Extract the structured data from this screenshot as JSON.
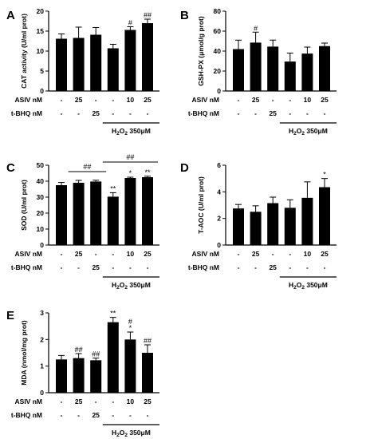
{
  "chart_data": [
    {
      "panel": "A",
      "type": "bar",
      "ylabel": "CAT activity (U/ml prot)",
      "ylim": [
        0,
        20
      ],
      "yticks": [
        "0",
        "5",
        "10",
        "15",
        "20"
      ],
      "values": [
        13.1,
        13.3,
        14.1,
        10.7,
        15.3,
        17.0
      ],
      "errors": [
        1.2,
        2.7,
        1.8,
        1.0,
        0.8,
        1.0
      ],
      "marks": [
        "",
        "",
        "",
        "",
        "#",
        "##"
      ],
      "grid": false,
      "rows": [
        {
          "label": "ASIV nM",
          "cells": [
            "-",
            "25",
            "-",
            "-",
            "10",
            "25"
          ]
        },
        {
          "label": "t-BHQ nM",
          "cells": [
            "-",
            "-",
            "25",
            "-",
            "-",
            "-"
          ]
        }
      ],
      "h2o2": {
        "prefix": "H",
        "sub1": "2",
        "mid": "O",
        "sub2": "2",
        "suffix": "  350μM"
      }
    },
    {
      "panel": "B",
      "type": "bar",
      "ylabel": "GSH-PX (μmol/g prot)",
      "ylim": [
        0,
        80
      ],
      "yticks": [
        "0",
        "20",
        "40",
        "60",
        "80"
      ],
      "values": [
        42,
        48.5,
        44.5,
        29.5,
        37.5,
        45
      ],
      "errors": [
        9,
        10.5,
        6.5,
        8.5,
        6.5,
        3
      ],
      "marks": [
        "",
        "#",
        "",
        "",
        "",
        ""
      ],
      "grid": false,
      "rows": [
        {
          "label": "ASIV nM",
          "cells": [
            "-",
            "25",
            "-",
            "-",
            "10",
            "25"
          ]
        },
        {
          "label": "t-BHQ nM",
          "cells": [
            "-",
            "-",
            "25",
            "-",
            "-",
            "-"
          ]
        }
      ],
      "h2o2": {
        "prefix": "H",
        "sub1": "2",
        "mid": "O",
        "sub2": "2",
        "suffix": "  350μM"
      }
    },
    {
      "panel": "C",
      "type": "bar",
      "ylabel": "SOD (U/ml prot)",
      "ylim": [
        0,
        50
      ],
      "yticks": [
        "0",
        "10",
        "20",
        "30",
        "40",
        "50"
      ],
      "values": [
        37.5,
        39,
        39.8,
        30.3,
        42,
        42.5
      ],
      "errors": [
        1.7,
        1.5,
        0.8,
        2.5,
        0.5,
        0.6
      ],
      "marks": [
        "",
        "",
        "",
        "**",
        "*",
        "**"
      ],
      "brackets": [
        {
          "from": 1,
          "to": 2,
          "y": 46,
          "label": "##"
        },
        {
          "from": 3,
          "to": 5,
          "y": 52,
          "label": "##"
        }
      ],
      "grid": false,
      "rows": [
        {
          "label": "ASIV nM",
          "cells": [
            "-",
            "25",
            "-",
            "-",
            "10",
            "25"
          ]
        },
        {
          "label": "t-BHQ nM",
          "cells": [
            "-",
            "-",
            "25",
            "-",
            "-",
            "-"
          ]
        }
      ],
      "h2o2": {
        "prefix": "H",
        "sub1": "2",
        "mid": "O",
        "sub2": "2",
        "suffix": "  350μM"
      }
    },
    {
      "panel": "D",
      "type": "bar",
      "ylabel": "T-AOC (U/ml prot)",
      "ylim": [
        0,
        6
      ],
      "yticks": [
        "0",
        "2",
        "4",
        "6"
      ],
      "values": [
        2.75,
        2.5,
        3.15,
        2.8,
        3.55,
        4.35
      ],
      "errors": [
        0.3,
        0.45,
        0.45,
        0.6,
        1.2,
        0.65
      ],
      "marks": [
        "",
        "",
        "",
        "",
        "",
        "*"
      ],
      "grid": false,
      "rows": [
        {
          "label": "ASIV nM",
          "cells": [
            "-",
            "25",
            "-",
            "-",
            "10",
            "25"
          ]
        },
        {
          "label": "t-BHQ nM",
          "cells": [
            "-",
            "-",
            "25",
            "-",
            "-",
            "-"
          ]
        }
      ],
      "h2o2": {
        "prefix": "H",
        "sub1": "2",
        "mid": "O",
        "sub2": "2",
        "suffix": "  350μM"
      }
    },
    {
      "panel": "E",
      "type": "bar",
      "ylabel": "MDA (nmol/mg prot)",
      "ylim": [
        0,
        3
      ],
      "yticks": [
        "0",
        "1",
        "2",
        "3"
      ],
      "values": [
        1.25,
        1.3,
        1.22,
        2.65,
        2.0,
        1.5
      ],
      "errors": [
        0.15,
        0.17,
        0.08,
        0.18,
        0.28,
        0.3
      ],
      "marks": [
        "",
        "##",
        "##",
        "**",
        "*",
        "##"
      ],
      "marks2": [
        "",
        "",
        "",
        "",
        "#",
        ""
      ],
      "grid": false,
      "rows": [
        {
          "label": "ASIV nM",
          "cells": [
            "-",
            "25",
            "-",
            "-",
            "10",
            "25"
          ]
        },
        {
          "label": "t-BHQ nM",
          "cells": [
            "-",
            "-",
            "25",
            "-",
            "-",
            "-"
          ]
        }
      ],
      "h2o2": {
        "prefix": "H",
        "sub1": "2",
        "mid": "O",
        "sub2": "2",
        "suffix": "  350μM"
      }
    }
  ]
}
